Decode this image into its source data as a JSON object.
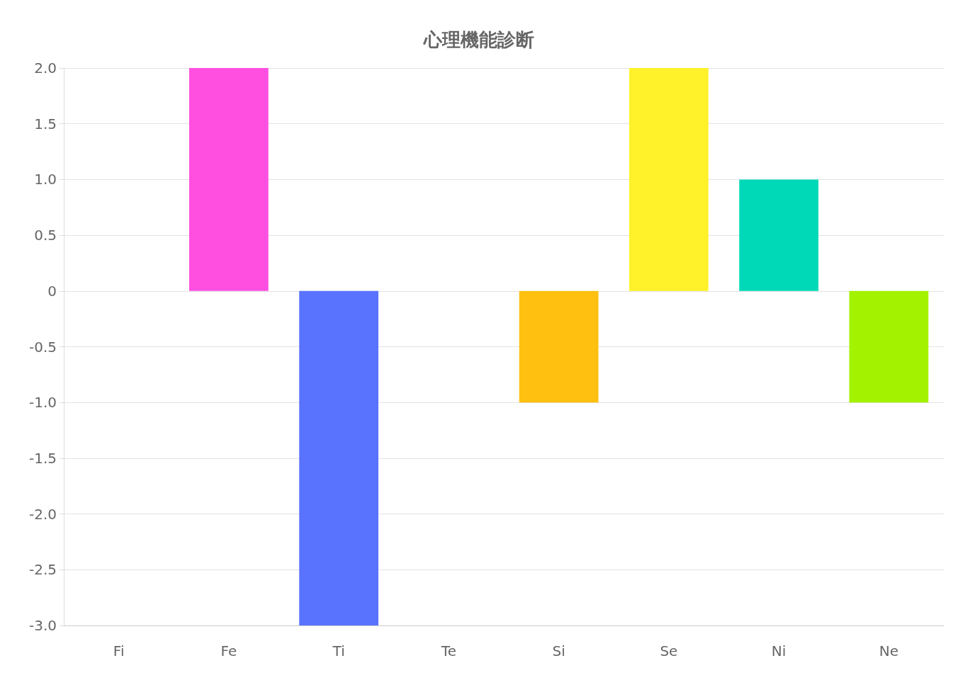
{
  "chart_data": {
    "type": "bar",
    "title": "心理機能診断",
    "categories": [
      "Fi",
      "Fe",
      "Ti",
      "Te",
      "Si",
      "Se",
      "Ni",
      "Ne"
    ],
    "values": [
      0,
      2,
      -3,
      0,
      -1,
      2,
      1,
      -1
    ],
    "colors": [
      null,
      "#ff4fe1",
      "#5a73ff",
      null,
      "#ffc010",
      "#fff12a",
      "#00d9b8",
      "#a3f200"
    ],
    "ylim": [
      -3,
      2
    ],
    "yticks": [
      {
        "value": -3,
        "label": "-3.0"
      },
      {
        "value": -2.5,
        "label": "-2.5"
      },
      {
        "value": -2,
        "label": "-2.0"
      },
      {
        "value": -1.5,
        "label": "-1.5"
      },
      {
        "value": -1,
        "label": "-1.0"
      },
      {
        "value": -0.5,
        "label": "-0.5"
      },
      0,
      {
        "value": 0.5,
        "label": "0.5"
      },
      {
        "value": 1,
        "label": "1.0"
      },
      {
        "value": 1.5,
        "label": "1.5"
      },
      {
        "value": 2,
        "label": "2.0"
      }
    ],
    "grid": "y"
  }
}
